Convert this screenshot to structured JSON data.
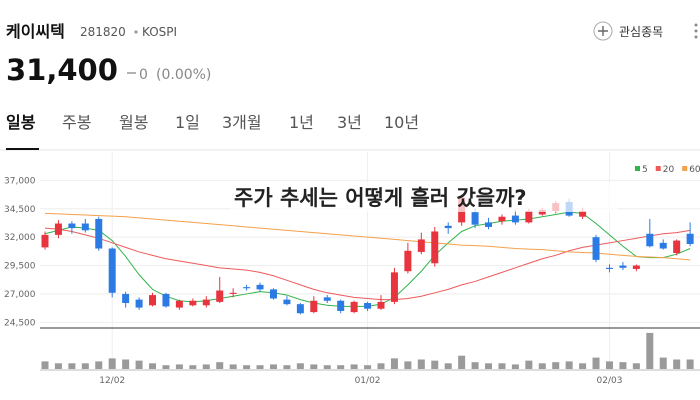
{
  "header": {
    "name": "케이씨텍",
    "code": "281820",
    "market": "KOSPI",
    "price": "31,400",
    "change": "0",
    "change_pct": "(0.00%)",
    "watch_button": "관심종목"
  },
  "tabs": [
    "일봉",
    "주봉",
    "월봉",
    "1일",
    "3개월",
    "1년",
    "3년",
    "10년"
  ],
  "chart_data": {
    "type": "candlestick",
    "annotation": "주가 추세는 어떻게 흘러 갔을까?",
    "categories": [
      null,
      null,
      null,
      null,
      null,
      "12/02",
      null,
      null,
      null,
      null,
      null,
      null,
      null,
      null,
      null,
      null,
      null,
      null,
      null,
      null,
      null,
      null,
      null,
      null,
      "01/02",
      null,
      null,
      null,
      null,
      null,
      null,
      null,
      null,
      null,
      null,
      null,
      null,
      null,
      null,
      null,
      null,
      null,
      "02/03",
      null,
      null,
      null,
      null,
      null,
      null
    ],
    "open": [
      31100,
      32200,
      33200,
      33200,
      33600,
      31000,
      27000,
      26500,
      26000,
      27000,
      25800,
      26000,
      26000,
      26300,
      27000,
      27600,
      27800,
      27400,
      26500,
      26100,
      25400,
      26700,
      26400,
      25400,
      26200,
      25700,
      26300,
      29000,
      30700,
      29700,
      33000,
      33300,
      34200,
      33300,
      33400,
      33900,
      33300,
      34000,
      34300,
      35100,
      33800,
      32000,
      29300,
      29500,
      29200,
      32300,
      31500,
      30600,
      32300
    ],
    "high": [
      32500,
      33500,
      33400,
      33600,
      33800,
      31100,
      27200,
      26700,
      27100,
      27100,
      26500,
      26600,
      26800,
      28500,
      27500,
      27800,
      28000,
      27500,
      26800,
      26200,
      26800,
      26900,
      26500,
      26400,
      26300,
      26900,
      29300,
      31500,
      32400,
      32900,
      33300,
      35600,
      34500,
      33700,
      34000,
      34400,
      34500,
      34600,
      35200,
      35400,
      34600,
      32200,
      29600,
      29800,
      29600,
      33600,
      31800,
      31800,
      33300
    ],
    "low": [
      30900,
      31900,
      32300,
      32400,
      30800,
      26700,
      25800,
      25600,
      25900,
      25800,
      25600,
      25900,
      25800,
      26200,
      26700,
      27300,
      27200,
      26500,
      26000,
      25200,
      25300,
      26200,
      25300,
      25300,
      25500,
      25600,
      26100,
      28800,
      30500,
      29400,
      32300,
      33000,
      32800,
      32700,
      33100,
      33100,
      33200,
      33900,
      34100,
      33800,
      33600,
      29800,
      28900,
      29100,
      29000,
      31100,
      30900,
      30400,
      31200
    ],
    "close": [
      32200,
      33200,
      32800,
      32600,
      31000,
      27100,
      26200,
      25800,
      26900,
      25900,
      26400,
      26400,
      26500,
      27300,
      27100,
      27500,
      27400,
      26600,
      26100,
      25300,
      26400,
      26400,
      25500,
      26300,
      25700,
      26300,
      28900,
      30800,
      31800,
      32500,
      32800,
      35500,
      33100,
      32900,
      33800,
      33300,
      34300,
      34400,
      35000,
      33900,
      34300,
      30000,
      29200,
      29300,
      29500,
      31200,
      31000,
      31700,
      31400
    ],
    "up_color": "#e8343f",
    "down_color": "#2c7be5",
    "series": [
      {
        "name": "5",
        "color": "#31b44b",
        "values": [
          32300,
          32600,
          32900,
          32800,
          32600,
          31700,
          30300,
          28700,
          27400,
          26800,
          26400,
          26300,
          26400,
          26600,
          26800,
          27000,
          27200,
          27100,
          26900,
          26500,
          26200,
          26000,
          25900,
          25900,
          25900,
          26100,
          26700,
          27800,
          29000,
          30400,
          31500,
          32500,
          33000,
          33200,
          33400,
          33500,
          33600,
          33800,
          34000,
          34200,
          34100,
          33200,
          32200,
          31200,
          30300,
          30200,
          30200,
          30500,
          31000
        ]
      },
      {
        "name": "20",
        "color": "#ee5a5a",
        "values": [
          32800,
          32700,
          32500,
          32200,
          31900,
          31500,
          31100,
          30700,
          30400,
          30100,
          29900,
          29700,
          29500,
          29300,
          29200,
          29100,
          28900,
          28600,
          28200,
          27800,
          27400,
          27100,
          26900,
          26700,
          26600,
          26500,
          26500,
          26600,
          26800,
          27100,
          27400,
          27800,
          28100,
          28500,
          28900,
          29300,
          29700,
          30100,
          30400,
          30800,
          31100,
          31300,
          31500,
          31700,
          31900,
          32100,
          32300,
          32400,
          32600
        ]
      },
      {
        "name": "60",
        "color": "#f5a04a",
        "values": [
          34100,
          34050,
          34000,
          33950,
          33900,
          33850,
          33800,
          33700,
          33600,
          33500,
          33400,
          33300,
          33200,
          33100,
          33000,
          32900,
          32800,
          32700,
          32600,
          32500,
          32400,
          32300,
          32200,
          32100,
          32000,
          31900,
          31800,
          31700,
          31600,
          31500,
          31400,
          31300,
          31250,
          31200,
          31100,
          31000,
          30950,
          30900,
          30800,
          30700,
          30650,
          30600,
          30500,
          30400,
          30300,
          30250,
          30200,
          30100,
          30000
        ]
      }
    ],
    "ylim": [
      24000,
      39500
    ],
    "yticks": [
      {
        "value": 24500,
        "label": "24,500"
      },
      {
        "value": 27000,
        "label": "27,000"
      },
      {
        "value": 29500,
        "label": "29,500"
      },
      {
        "value": 32000,
        "label": "32,000"
      },
      {
        "value": 34500,
        "label": "34,500"
      },
      {
        "value": 37000,
        "label": "37,000"
      }
    ],
    "grid": true,
    "volume": {
      "color": "#9a9a9a",
      "ylim": [
        0,
        100
      ],
      "values": [
        20,
        15,
        15,
        15,
        20,
        28,
        25,
        22,
        15,
        10,
        12,
        10,
        12,
        18,
        12,
        10,
        10,
        12,
        10,
        15,
        12,
        10,
        10,
        12,
        10,
        15,
        28,
        20,
        25,
        22,
        15,
        35,
        18,
        15,
        15,
        12,
        22,
        15,
        18,
        20,
        15,
        30,
        20,
        18,
        15,
        95,
        30,
        25,
        25
      ]
    }
  }
}
